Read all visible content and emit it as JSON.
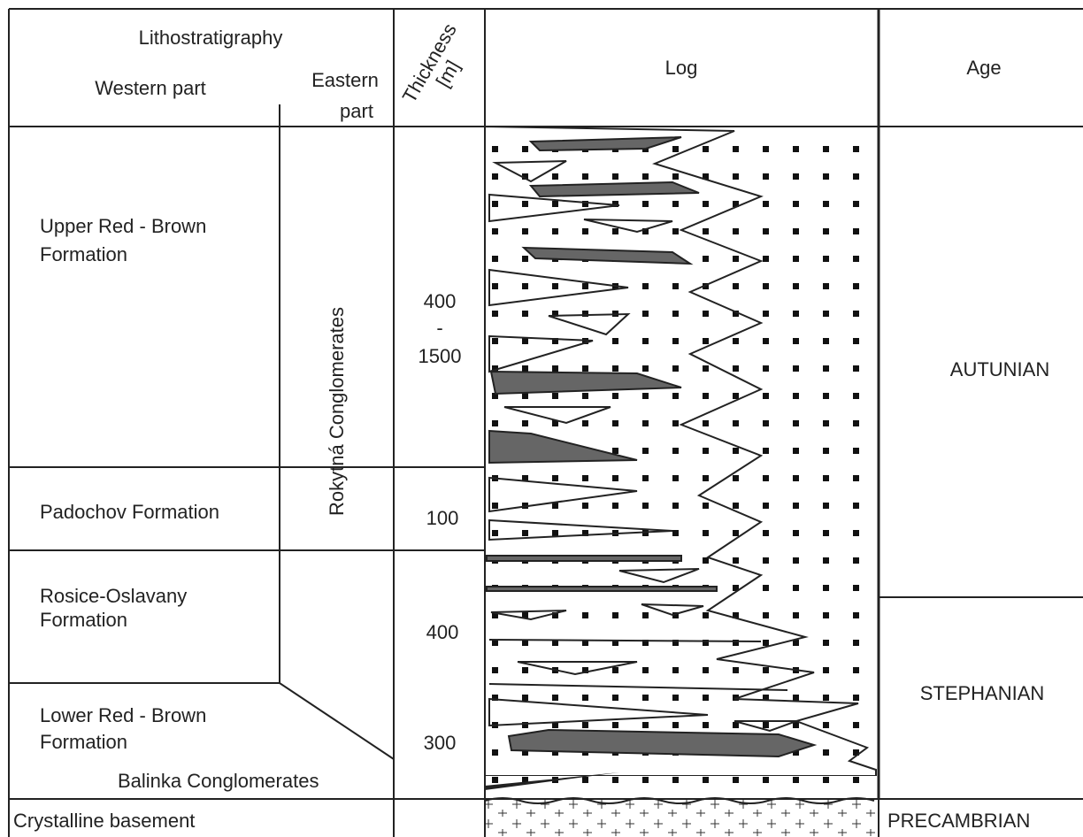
{
  "header": {
    "lithostratigraphy": "Lithostratigraphy",
    "western_part": "Western part",
    "eastern_part": [
      "Eastern",
      "part"
    ],
    "thickness": [
      "Thickness",
      "[m]"
    ],
    "log": "Log",
    "age": "Age"
  },
  "formations": [
    {
      "name": [
        "Upper Red - Brown",
        "Formation"
      ]
    },
    {
      "name": [
        "Padochov Formation"
      ]
    },
    {
      "name": [
        "Rosice-Oslavany",
        "Formation"
      ]
    },
    {
      "name": [
        "Lower Red - Brown",
        "Formation"
      ]
    },
    {
      "name": [
        "Crystalline basement"
      ]
    }
  ],
  "eastern_units": [
    "Rokytná Conglomerates",
    "Balinka Conglomerates"
  ],
  "thickness": [
    [
      "400",
      "-",
      "1500"
    ],
    [
      "100"
    ],
    [
      "400"
    ],
    [
      "300"
    ]
  ],
  "ages": [
    "AUTUNIAN",
    "STEPHANIAN",
    "PRECAMBRIAN"
  ]
}
